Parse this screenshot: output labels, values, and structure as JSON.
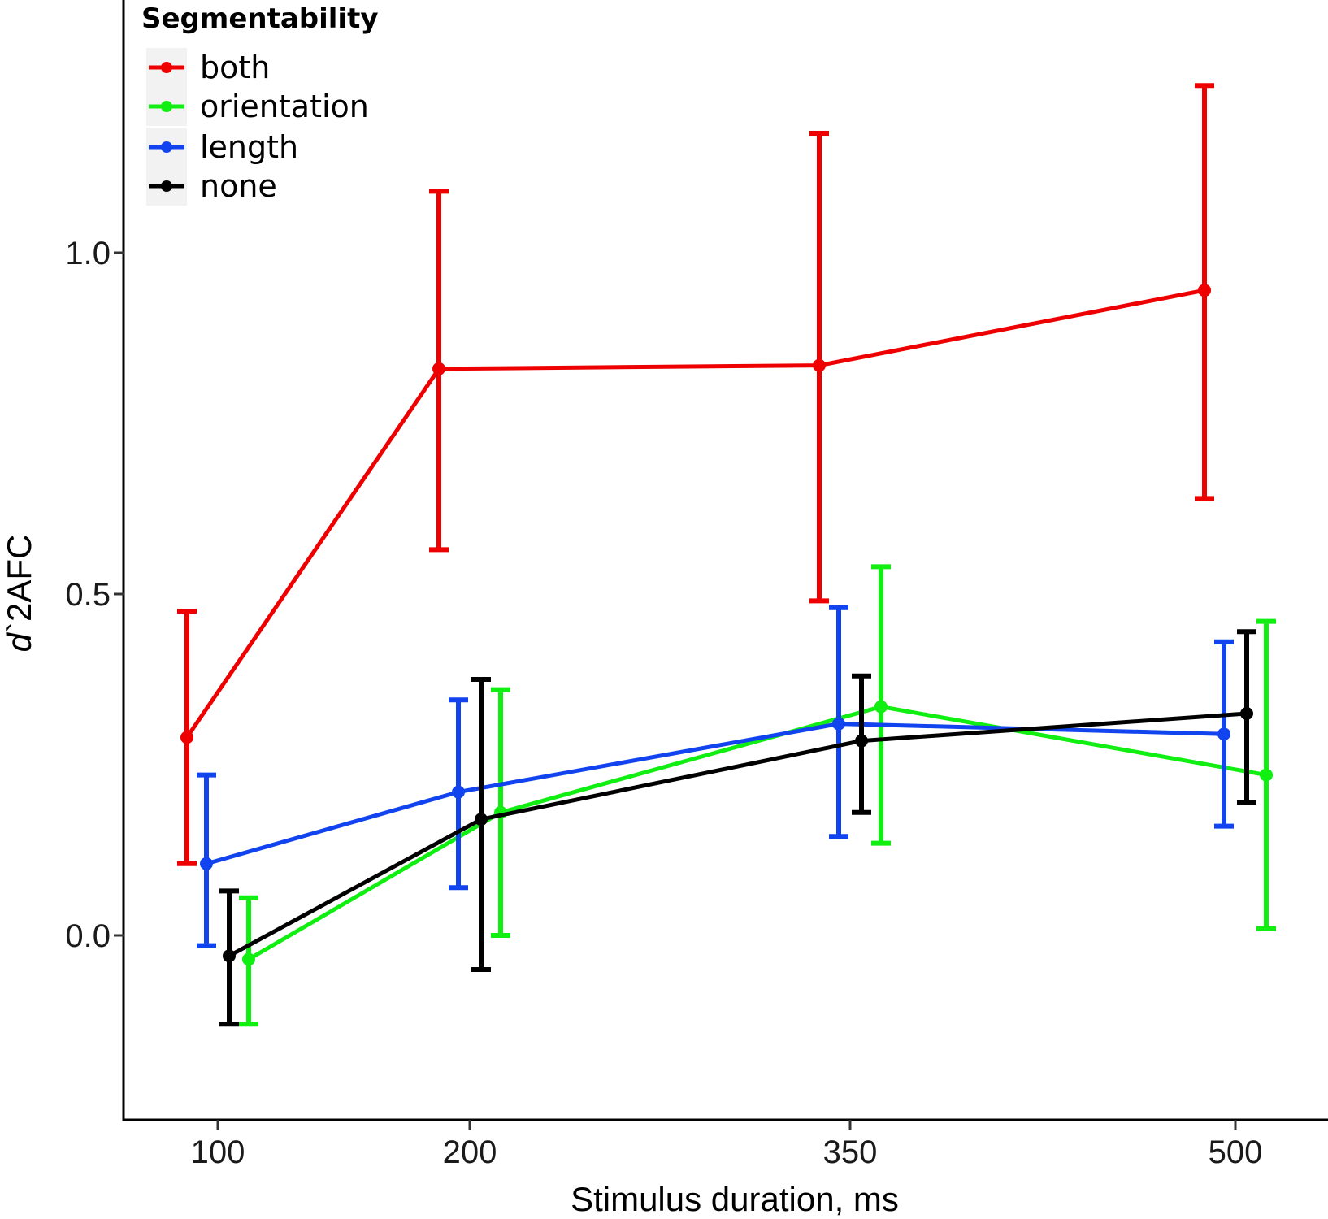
{
  "chart_data": {
    "type": "line",
    "title": "",
    "xlabel": "Stimulus duration, ms",
    "ylabel_italic": "d",
    "ylabel_rest": "`2AFC",
    "x_ticks": [
      "100",
      "200",
      "350",
      "500"
    ],
    "y_ticks": [
      "0.0",
      "0.5",
      "1.0"
    ],
    "y_tick_values": [
      0.0,
      0.5,
      1.0
    ],
    "ylim": [
      -0.27,
      1.37
    ],
    "grid": false,
    "error_bars": true,
    "legend": {
      "title": "Segmentability",
      "placement": "top-left"
    },
    "series": [
      {
        "name": "both",
        "color": "#ee0000",
        "values": [
          0.29,
          0.83,
          0.835,
          0.945
        ],
        "lower": [
          0.105,
          0.565,
          0.49,
          0.64
        ],
        "upper": [
          0.475,
          1.09,
          1.175,
          1.245
        ]
      },
      {
        "name": "orientation",
        "color": "#11ee11",
        "values": [
          -0.035,
          0.18,
          0.335,
          0.235
        ],
        "lower": [
          -0.13,
          0.0,
          0.135,
          0.01
        ],
        "upper": [
          0.055,
          0.36,
          0.54,
          0.46
        ]
      },
      {
        "name": "length",
        "color": "#1144ee",
        "values": [
          0.105,
          0.21,
          0.31,
          0.295
        ],
        "lower": [
          -0.015,
          0.07,
          0.145,
          0.16
        ],
        "upper": [
          0.235,
          0.345,
          0.48,
          0.43
        ]
      },
      {
        "name": "none",
        "color": "#000000",
        "values": [
          -0.03,
          0.17,
          0.285,
          0.325
        ],
        "lower": [
          -0.13,
          -0.05,
          0.18,
          0.195
        ],
        "upper": [
          0.065,
          0.375,
          0.38,
          0.445
        ]
      }
    ]
  }
}
